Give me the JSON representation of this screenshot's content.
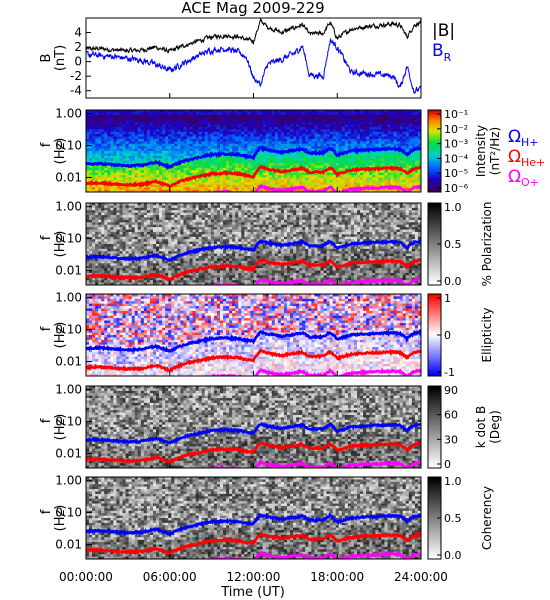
{
  "title": "ACE Mag 2009-229",
  "time_axis": {
    "label": "Time (UT)",
    "ticks": [
      "00:00:00",
      "06:00:00",
      "12:00:00",
      "18:00:00",
      "24:00:00"
    ],
    "range_hours": [
      0,
      24
    ]
  },
  "freq_axis": {
    "label_f": "f",
    "label_unit": "(Hz)",
    "ticks": [
      "1.00",
      "0.10",
      "0.01"
    ],
    "tick_values": [
      1.0,
      0.1,
      0.01
    ],
    "range": [
      0.0035,
      1.3
    ],
    "scale": "log"
  },
  "colors": {
    "bmag": "#000000",
    "br": "#0000ff",
    "h_plus": "#0000ff",
    "he_plus": "#ff0000",
    "o_plus": "#ff00ff"
  },
  "legend_top": {
    "bmag": "|B|",
    "br_main": "B",
    "br_sub": "R"
  },
  "legend_gyro": {
    "omega": "Ω",
    "h": "H+",
    "he": "He+",
    "o": "O+"
  },
  "panels": [
    {
      "id": "intensity",
      "colorbar_label": "Intensity",
      "colorbar_label2": "(nT²/Hz)",
      "colormap": "rainbow",
      "colorbar_ticks": [
        "10⁻¹",
        "10⁻²",
        "10⁻³",
        "10⁻⁴",
        "10⁻⁵",
        "10⁻⁶"
      ]
    },
    {
      "id": "polarization",
      "colorbar_label": "% Polarization",
      "colorbar_label2": "",
      "colormap": "gray",
      "colorbar_ticks": [
        "1.0",
        "0.5",
        "0.0"
      ]
    },
    {
      "id": "ellipticity",
      "colorbar_label": "Ellipticity",
      "colorbar_label2": "",
      "colormap": "bluewhitered",
      "colorbar_ticks": [
        "1",
        "0",
        "-1"
      ]
    },
    {
      "id": "kdotb",
      "colorbar_label": "k dot B",
      "colorbar_label2": "(Deg)",
      "colormap": "gray",
      "colorbar_ticks": [
        "90",
        "60",
        "30",
        "0"
      ]
    },
    {
      "id": "coherency",
      "colorbar_label": "Coherency",
      "colorbar_label2": "",
      "colormap": "gray",
      "colorbar_ticks": [
        "1.0",
        "0.5",
        "0.0"
      ]
    }
  ],
  "chart_data": [
    {
      "type": "line",
      "panel": "magnetic_field",
      "ylabel": "B",
      "yunit": "(nT)",
      "ylim": [
        -5,
        6
      ],
      "yticks": [
        4,
        2,
        0,
        -2,
        -4
      ],
      "x_hours": [
        0,
        1,
        2,
        3,
        4,
        5,
        6,
        7,
        8,
        9,
        10,
        11,
        11.5,
        12,
        12.5,
        13,
        14,
        15,
        15.5,
        16,
        17,
        17.5,
        18,
        19,
        20,
        21,
        22,
        22.5,
        23,
        23.5,
        24
      ],
      "series": [
        {
          "name": "|B|",
          "values": [
            1.7,
            1.8,
            1.6,
            1.5,
            1.6,
            2.0,
            1.4,
            2.2,
            2.8,
            3.4,
            3.6,
            3.4,
            3.0,
            2.8,
            5.6,
            4.8,
            4.0,
            4.7,
            5.1,
            3.8,
            3.9,
            5.4,
            3.2,
            4.5,
            4.8,
            5.0,
            5.2,
            5.0,
            3.4,
            5.0,
            5.5
          ]
        },
        {
          "name": "BR",
          "values": [
            1.0,
            0.8,
            0.7,
            0.4,
            0.2,
            -0.4,
            -1.2,
            -0.2,
            0.8,
            1.6,
            1.8,
            1.2,
            0.6,
            -2.2,
            -3.2,
            -0.4,
            0.3,
            1.2,
            2.2,
            -1.8,
            -2.0,
            3.0,
            2.0,
            -1.5,
            -1.6,
            -1.8,
            -2.0,
            -3.6,
            -0.6,
            -4.0,
            -3.8
          ]
        }
      ]
    },
    {
      "type": "line",
      "panel": "gyrofrequencies",
      "description_units": "Hz",
      "x_hours": [
        0,
        1,
        2,
        3,
        4,
        5,
        6,
        7,
        8,
        9,
        10,
        11,
        11.5,
        12,
        12.5,
        13,
        14,
        15,
        15.5,
        16,
        17,
        17.5,
        18,
        19,
        20,
        21,
        22,
        22.5,
        23,
        23.5,
        24
      ],
      "series": [
        {
          "name": "ΩH+",
          "values": [
            0.026,
            0.027,
            0.025,
            0.023,
            0.024,
            0.03,
            0.021,
            0.033,
            0.042,
            0.052,
            0.055,
            0.052,
            0.046,
            0.043,
            0.085,
            0.073,
            0.061,
            0.072,
            0.078,
            0.058,
            0.059,
            0.082,
            0.049,
            0.068,
            0.073,
            0.076,
            0.079,
            0.076,
            0.052,
            0.076,
            0.084
          ]
        },
        {
          "name": "ΩHe+",
          "values": [
            0.0065,
            0.0068,
            0.0062,
            0.0058,
            0.006,
            0.0075,
            0.0052,
            0.0083,
            0.0105,
            0.013,
            0.0138,
            0.013,
            0.0115,
            0.0108,
            0.0213,
            0.0183,
            0.0153,
            0.018,
            0.0195,
            0.0145,
            0.0148,
            0.0205,
            0.0123,
            0.017,
            0.0183,
            0.019,
            0.0198,
            0.019,
            0.013,
            0.019,
            0.021
          ]
        },
        {
          "name": "ΩO+",
          "values": [
            0.0016,
            0.0017,
            0.0016,
            0.0015,
            0.0015,
            0.0019,
            0.0013,
            0.0021,
            0.0026,
            0.0033,
            0.0035,
            0.0033,
            0.0029,
            0.0027,
            0.0053,
            0.0046,
            0.0038,
            0.0045,
            0.0049,
            0.0036,
            0.0037,
            0.0051,
            0.0031,
            0.0043,
            0.0046,
            0.0048,
            0.005,
            0.0048,
            0.0033,
            0.0048,
            0.0053
          ]
        }
      ]
    }
  ]
}
